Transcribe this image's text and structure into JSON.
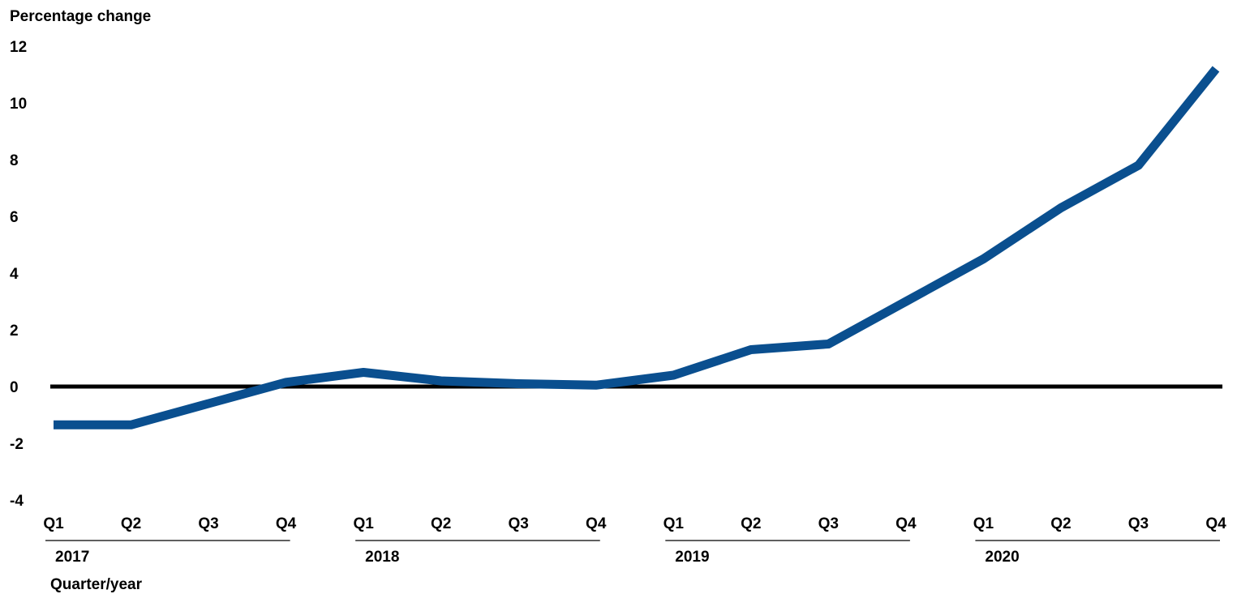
{
  "chart_data": {
    "type": "line",
    "ylabel": "Percentage change",
    "xlabel": "Quarter/year",
    "ylim": [
      -4,
      12
    ],
    "y_ticks": [
      "12",
      "10",
      "8",
      "6",
      "4",
      "2",
      "0",
      "-2",
      "-4"
    ],
    "grid": false,
    "legend": "none",
    "categories": [
      "2017 Q1",
      "2017 Q2",
      "2017 Q3",
      "2017 Q4",
      "2018 Q1",
      "2018 Q2",
      "2018 Q3",
      "2018 Q4",
      "2019 Q1",
      "2019 Q2",
      "2019 Q3",
      "2019 Q4",
      "2020 Q1",
      "2020 Q2",
      "2020 Q3",
      "2020 Q4"
    ],
    "quarter_labels": [
      "Q1",
      "Q2",
      "Q3",
      "Q4",
      "Q1",
      "Q2",
      "Q3",
      "Q4",
      "Q1",
      "Q2",
      "Q3",
      "Q4",
      "Q1",
      "Q2",
      "Q3",
      "Q4"
    ],
    "years": [
      "2017",
      "2018",
      "2019",
      "2020"
    ],
    "series": [
      {
        "color": "#0A4F8F",
        "values": [
          -1.35,
          -1.35,
          -0.6,
          0.15,
          0.5,
          0.2,
          0.1,
          0.05,
          0.4,
          1.3,
          1.5,
          3.0,
          4.5,
          6.3,
          7.8,
          11.2
        ]
      }
    ],
    "zero_line_color": "#000000"
  }
}
